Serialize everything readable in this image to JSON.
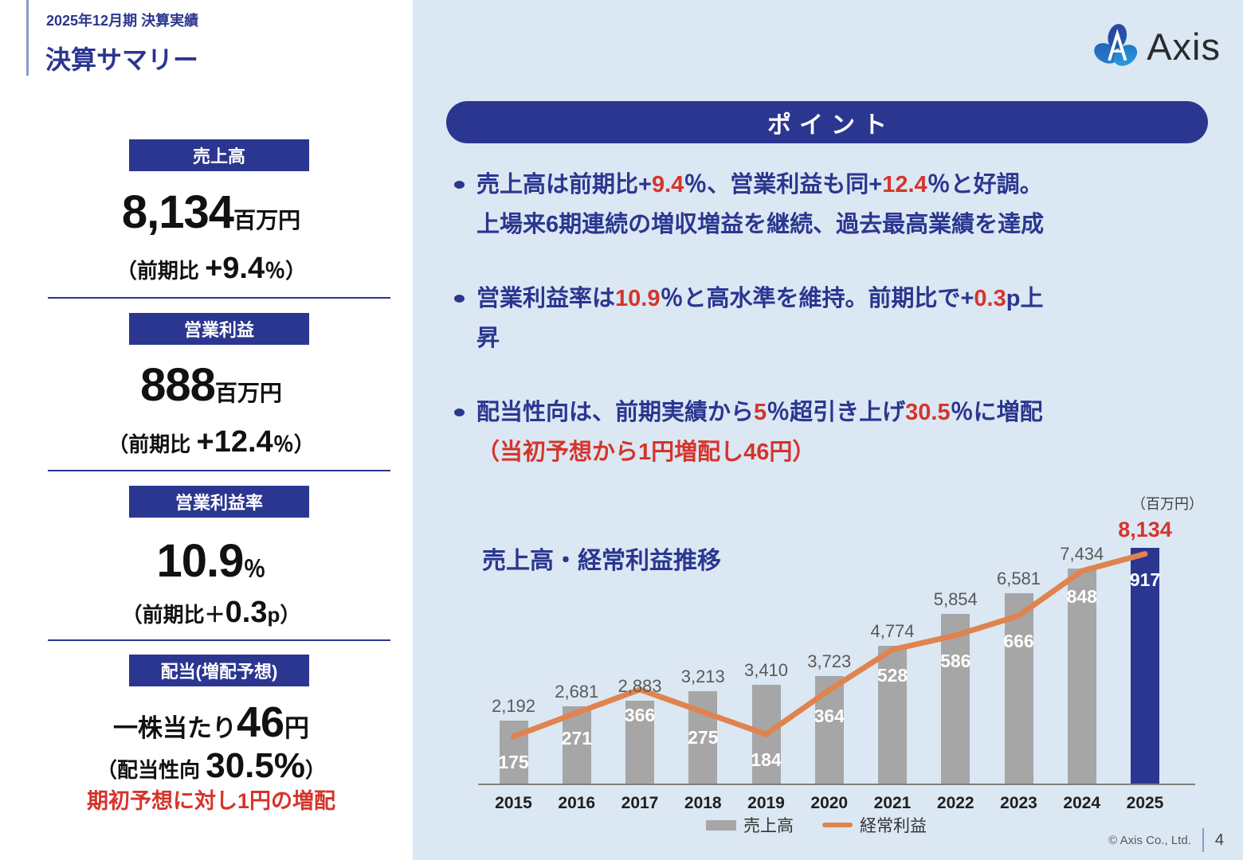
{
  "header": {
    "period": "2025年12月期 決算実績",
    "title": "決算サマリー"
  },
  "logo": {
    "text": "Axis"
  },
  "metrics": [
    {
      "badge": "売上高",
      "main": [
        {
          "t": "8,134",
          "s": "num-xl"
        },
        {
          "t": "百万円",
          "s": "unit"
        }
      ],
      "note": [
        {
          "t": "（前期比 ",
          "s": "note"
        },
        {
          "t": "+9.4",
          "s": "note-big"
        },
        {
          "t": "％）",
          "s": "note"
        }
      ]
    },
    {
      "badge": "営業利益",
      "main": [
        {
          "t": "888",
          "s": "num-xl"
        },
        {
          "t": "百万円",
          "s": "unit"
        }
      ],
      "note": [
        {
          "t": "（前期比 ",
          "s": "note"
        },
        {
          "t": "+12.4",
          "s": "note-big"
        },
        {
          "t": "％）",
          "s": "note"
        }
      ]
    },
    {
      "badge": "営業利益率",
      "main": [
        {
          "t": "10.9",
          "s": "num-xl"
        },
        {
          "t": "％",
          "s": "unit"
        }
      ],
      "note": [
        {
          "t": "（前期比＋",
          "s": "note"
        },
        {
          "t": "0.3",
          "s": "note-big"
        },
        {
          "t": "p）",
          "s": "note"
        }
      ]
    },
    {
      "badge": "配当(増配予想)",
      "main": [
        {
          "t": "一株当たり",
          "s": "jp-md"
        },
        {
          "t": "46",
          "s": "num-lg"
        },
        {
          "t": "円",
          "s": "jp-md"
        }
      ],
      "note": [
        {
          "t": "（配当性向 ",
          "s": "note"
        },
        {
          "t": "30.5%",
          "s": "note-big2"
        },
        {
          "t": "）",
          "s": "note"
        }
      ],
      "extra": "期初予想に対し1円の増配"
    }
  ],
  "points": {
    "banner": "ポイント",
    "bullets": [
      {
        "lines": [
          [
            {
              "t": "売上高は前期比+",
              "c": "n"
            },
            {
              "t": "9.4",
              "c": "r"
            },
            {
              "t": "％、営業利益も同+",
              "c": "n"
            },
            {
              "t": "12.4",
              "c": "r"
            },
            {
              "t": "％と好調。",
              "c": "n"
            }
          ],
          [
            {
              "t": "上場来6期連続の増収増益を継続、過去最高業績を達成",
              "c": "n"
            }
          ]
        ]
      },
      {
        "lines": [
          [
            {
              "t": "営業利益率は",
              "c": "n"
            },
            {
              "t": "10.9",
              "c": "r"
            },
            {
              "t": "％と高水準を維持。前期比で+",
              "c": "n"
            },
            {
              "t": "0.3",
              "c": "r"
            },
            {
              "t": "p上",
              "c": "n"
            }
          ],
          [
            {
              "t": "昇",
              "c": "n"
            }
          ]
        ]
      },
      {
        "lines": [
          [
            {
              "t": "配当性向は、前期実績から",
              "c": "n"
            },
            {
              "t": "5",
              "c": "r"
            },
            {
              "t": "％超引き上げ",
              "c": "n"
            },
            {
              "t": "30.5",
              "c": "r"
            },
            {
              "t": "％に増配",
              "c": "n"
            }
          ],
          [
            {
              "t": "（当初予想から1円増配し46円）",
              "c": "r"
            }
          ]
        ]
      }
    ]
  },
  "chart_data": {
    "type": "bar+line",
    "title": "売上高・経常利益推移",
    "unit_label": "（百万円）",
    "categories": [
      "2015",
      "2016",
      "2017",
      "2018",
      "2019",
      "2020",
      "2021",
      "2022",
      "2023",
      "2024",
      "2025"
    ],
    "series": [
      {
        "name": "売上高",
        "type": "bar",
        "values": [
          2192,
          2681,
          2883,
          3213,
          3410,
          3723,
          4774,
          5854,
          6581,
          7434,
          8134
        ]
      },
      {
        "name": "経常利益",
        "type": "line",
        "values": [
          175,
          271,
          366,
          275,
          184,
          364,
          528,
          586,
          666,
          848,
          917
        ]
      }
    ],
    "highlight_index": 10,
    "legend_position": "bottom",
    "colors": {
      "bar": "#a6a6a6",
      "bar_highlight": "#2b3690",
      "line": "#e0834e"
    }
  },
  "footer": {
    "copyright": "© Axis Co., Ltd.",
    "page": "4"
  },
  "colors": {
    "navy": "#2b3690",
    "red": "#d5342c",
    "bar_gray": "#a6a6a6",
    "orange": "#e0834e",
    "panel_blue": "#dbe7f2"
  }
}
